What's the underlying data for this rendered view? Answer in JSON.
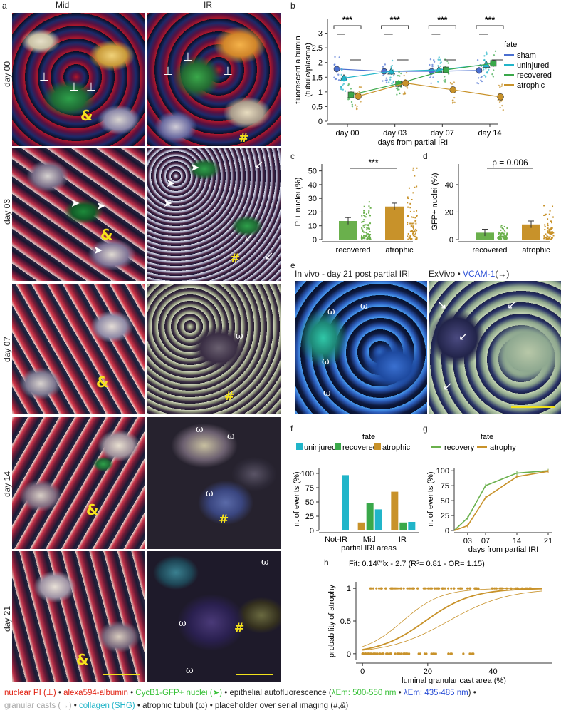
{
  "panel_labels": {
    "a": "a",
    "b": "b",
    "c": "c",
    "d": "d",
    "e": "e",
    "f": "f",
    "g": "g",
    "h": "h"
  },
  "panel_a": {
    "col_titles": [
      "Mid",
      "IR"
    ],
    "rows": [
      "day 00",
      "day 03",
      "day 07",
      "day 14",
      "day 21"
    ],
    "marks": {
      "amp": "&",
      "hash": "#",
      "omega": "ω",
      "perp": "⊥"
    }
  },
  "panel_e": {
    "title_left": "In vivo - day 21 post partial IRI",
    "title_right_prefix": "ExVivo • ",
    "title_right_marker": "VCAM-1",
    "title_right_suffix": "(→)",
    "omega": "ω",
    "colors": {
      "vcam": "#2a4fd6"
    }
  },
  "legend": {
    "nuclear_pi": "nuclear PI (⊥)",
    "albumin": "alexa594-albumin",
    "cycb1": "CycB1-GFP+ nuclei (➤)",
    "epithelial": "• epithelial autofluorescence (",
    "em_green": "λEm: 500-550 nm",
    "em_sep": " • ",
    "em_blue": "λEm: 435-485 nm",
    "epithelial_end": ") •",
    "granular": "granular casts (→)",
    "collagen": "collagen (SHG)",
    "atrophic": "atrophic tubuli (ω) • placeholder over serial imaging (#,&)",
    "sep": " • ",
    "colors": {
      "red": "#e02010",
      "green": "#3cc23c",
      "blue": "#2a4fd6",
      "grey": "#a8a8a8",
      "cyan": "#21b5c9"
    }
  },
  "chart_data": [
    {
      "id": "b",
      "type": "scatter",
      "ylabel": "fluorescent albumin\n(tubule/plasma)",
      "xlabel": "days from partial IRI",
      "categories": [
        "day 00",
        "day 03",
        "day 07",
        "day 14"
      ],
      "ylim": [
        0,
        3.5
      ],
      "yticks": [
        0,
        0.5,
        1,
        1.5,
        2,
        2.5,
        3
      ],
      "legend_title": "fate",
      "series": [
        {
          "name": "sham",
          "color": "#4a6fd0",
          "values": [
            1.78,
            1.7,
            1.7,
            1.73
          ]
        },
        {
          "name": "uninjured",
          "color": "#21b5c9",
          "values": [
            1.47,
            1.7,
            1.75,
            1.93
          ]
        },
        {
          "name": "recovered",
          "color": "#3aa84a",
          "values": [
            0.9,
            1.28,
            1.75,
            1.97
          ]
        },
        {
          "name": "atrophic",
          "color": "#c8922a",
          "values": [
            0.85,
            1.3,
            1.07,
            0.83
          ]
        }
      ],
      "annotations": [
        "***",
        "***",
        "***",
        "***"
      ]
    },
    {
      "id": "c",
      "type": "bar",
      "ylabel": "PI+ nuclei (%)",
      "categories": [
        "recovered",
        "atrophic"
      ],
      "values": [
        13.5,
        24
      ],
      "colors": [
        "#6ab04c",
        "#c8922a"
      ],
      "ylim": [
        0,
        55
      ],
      "yticks": [
        0,
        10,
        20,
        30,
        40,
        50
      ],
      "annotation": "***"
    },
    {
      "id": "d",
      "type": "bar",
      "ylabel": "GFP+ nuclei (%)",
      "categories": [
        "recovered",
        "atrophic"
      ],
      "values": [
        5,
        11
      ],
      "colors": [
        "#6ab04c",
        "#c8922a"
      ],
      "ylim": [
        0,
        55
      ],
      "yticks": [
        0,
        20,
        40
      ],
      "annotation": "p = 0.006"
    },
    {
      "id": "f",
      "type": "bar",
      "ylabel": "n. of events (%)",
      "xlabel": "partial IRI areas",
      "categories": [
        "Not-IR",
        "Mid",
        "IR"
      ],
      "legend_title": "fate",
      "ylim": [
        0,
        110
      ],
      "yticks": [
        0,
        25,
        50,
        75,
        100
      ],
      "series": [
        {
          "name": "uninjured",
          "color": "#21b5c9",
          "values": [
            97,
            37,
            15
          ]
        },
        {
          "name": "recovered",
          "color": "#3aa84a",
          "values": [
            1,
            48,
            14
          ]
        },
        {
          "name": "atrophic",
          "color": "#c8922a",
          "values": [
            1,
            14,
            68
          ]
        }
      ]
    },
    {
      "id": "g",
      "type": "line",
      "ylabel": "n. of events (%)",
      "xlabel": "days from partial IRI",
      "x": [
        0,
        3,
        7,
        14,
        21
      ],
      "xticks": [
        3,
        7,
        14,
        21
      ],
      "xticklabels": [
        "03",
        "07",
        "14",
        "21"
      ],
      "ylim": [
        0,
        105
      ],
      "yticks": [
        0,
        25,
        50,
        75,
        100
      ],
      "legend_title": "fate",
      "series": [
        {
          "name": "recovery",
          "color": "#6ab04c",
          "values": [
            0,
            21,
            75,
            96,
            100
          ]
        },
        {
          "name": "atrophy",
          "color": "#c8922a",
          "values": [
            0,
            8,
            55,
            90,
            99
          ]
        }
      ]
    },
    {
      "id": "h",
      "type": "scatter",
      "ylabel": "probability of atrophy",
      "xlabel": "luminal granular cast area (%)",
      "fit_label": "Fit: 0.14^(**)x - 2.7 (R²= 0.81 - OR= 1.15)",
      "fit_prefix": "Fit: 0.14",
      "fit_sup": "(**)",
      "fit_suffix": "x - 2.7 (R",
      "fit_sup2": "2",
      "fit_tail": "= 0.81 - OR= 1.15)",
      "xlim": [
        -2,
        58
      ],
      "ylim": [
        -0.1,
        1.1
      ],
      "xticks": [
        0,
        20,
        40
      ],
      "yticks": [
        0,
        0.5,
        1
      ],
      "color": "#c8922a",
      "fit": {
        "slope": 0.14,
        "intercept": -2.7
      }
    }
  ]
}
